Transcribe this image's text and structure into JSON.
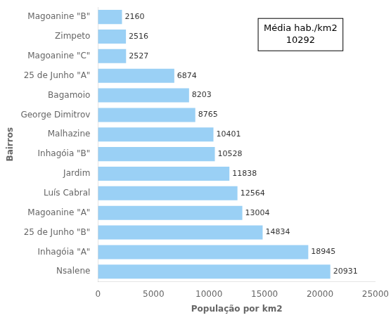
{
  "chart_data": {
    "type": "bar",
    "orientation": "horizontal",
    "categories": [
      "Nsalene",
      "Inhagóia \"A\"",
      "25 de Junho \"B\"",
      "Magoanine \"A\"",
      "Luís Cabral",
      "Jardim",
      "Inhagóia \"B\"",
      "Malhazine",
      "George Dimitrov",
      "Bagamoio",
      "25 de Junho \"A\"",
      "Magoanine \"C\"",
      "Zimpeto",
      "Magoanine \"B\""
    ],
    "values": [
      20931,
      18945,
      14834,
      13004,
      12564,
      11838,
      10528,
      10401,
      8765,
      8203,
      6874,
      2527,
      2516,
      2160
    ],
    "xlabel": "População por km2",
    "ylabel": "Bairros",
    "xlim": [
      0,
      25000
    ],
    "xticks": [
      0,
      5000,
      10000,
      15000,
      20000,
      25000
    ],
    "annotation": "Média hab./km2\n10292",
    "data_labels": true,
    "grid": false
  }
}
